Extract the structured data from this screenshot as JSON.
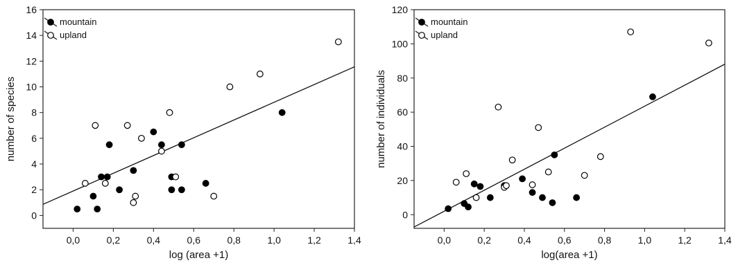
{
  "chart_data": [
    {
      "type": "scatter",
      "xlabel": "log (area +1)",
      "ylabel": "number of species",
      "xlim": [
        -0.15,
        1.4
      ],
      "ylim": [
        -1,
        16
      ],
      "xticks": [
        "0,0",
        "0,2",
        "0,4",
        "0,6",
        "0,8",
        "1,0",
        "1,2",
        "1,4"
      ],
      "yticks": [
        "0",
        "2",
        "4",
        "6",
        "8",
        "10",
        "12",
        "14",
        "16"
      ],
      "legend": {
        "position": "top-left",
        "entries": [
          "mountain",
          "upland"
        ]
      },
      "series": [
        {
          "name": "mountain",
          "marker": "filled-circle",
          "points": [
            [
              0.02,
              0.5
            ],
            [
              0.1,
              1.5
            ],
            [
              0.12,
              0.5
            ],
            [
              0.14,
              3.0
            ],
            [
              0.17,
              3.0
            ],
            [
              0.18,
              5.5
            ],
            [
              0.23,
              2.0
            ],
            [
              0.3,
              3.5
            ],
            [
              0.4,
              6.5
            ],
            [
              0.44,
              5.5
            ],
            [
              0.49,
              3.0
            ],
            [
              0.49,
              2.0
            ],
            [
              0.54,
              5.5
            ],
            [
              0.54,
              2.0
            ],
            [
              0.66,
              2.5
            ],
            [
              1.04,
              8.0
            ]
          ]
        },
        {
          "name": "upland",
          "marker": "open-circle",
          "points": [
            [
              0.06,
              2.5
            ],
            [
              0.11,
              7.0
            ],
            [
              0.16,
              2.5
            ],
            [
              0.27,
              7.0
            ],
            [
              0.3,
              1.0
            ],
            [
              0.31,
              1.5
            ],
            [
              0.34,
              6.0
            ],
            [
              0.44,
              5.0
            ],
            [
              0.48,
              8.0
            ],
            [
              0.51,
              3.0
            ],
            [
              0.7,
              1.5
            ],
            [
              0.78,
              10.0
            ],
            [
              0.93,
              11.0
            ],
            [
              1.32,
              13.5
            ]
          ]
        }
      ],
      "regression_line": {
        "intercept": 1.9,
        "slope": 6.9
      }
    },
    {
      "type": "scatter",
      "xlabel": "log(area +1)",
      "ylabel": "number of individuals",
      "xlim": [
        -0.15,
        1.4
      ],
      "ylim": [
        -8,
        120
      ],
      "xticks": [
        "0,0",
        "0,2",
        "0,4",
        "0,6",
        "0,8",
        "1,0",
        "1,2",
        "1,4"
      ],
      "yticks": [
        "0",
        "20",
        "40",
        "60",
        "80",
        "100",
        "120"
      ],
      "legend": {
        "position": "top-left",
        "entries": [
          "mountain",
          "upland"
        ]
      },
      "series": [
        {
          "name": "mountain",
          "marker": "filled-circle",
          "points": [
            [
              0.02,
              3.5
            ],
            [
              0.1,
              6.5
            ],
            [
              0.12,
              4.5
            ],
            [
              0.15,
              18.0
            ],
            [
              0.18,
              16.5
            ],
            [
              0.23,
              10.0
            ],
            [
              0.3,
              17.0
            ],
            [
              0.39,
              21.0
            ],
            [
              0.44,
              13.0
            ],
            [
              0.49,
              10.0
            ],
            [
              0.54,
              7.0
            ],
            [
              0.55,
              35.0
            ],
            [
              0.66,
              10.0
            ],
            [
              1.04,
              69.0
            ]
          ]
        },
        {
          "name": "upland",
          "marker": "open-circle",
          "points": [
            [
              0.06,
              19.0
            ],
            [
              0.11,
              24.0
            ],
            [
              0.16,
              10.0
            ],
            [
              0.27,
              63.0
            ],
            [
              0.3,
              16.0
            ],
            [
              0.31,
              17.0
            ],
            [
              0.34,
              32.0
            ],
            [
              0.44,
              17.5
            ],
            [
              0.47,
              51.0
            ],
            [
              0.52,
              25.0
            ],
            [
              0.7,
              23.0
            ],
            [
              0.78,
              34.0
            ],
            [
              0.93,
              107.0
            ],
            [
              1.32,
              100.5
            ]
          ]
        }
      ],
      "regression_line": {
        "intercept": 2.0,
        "slope": 61.5
      }
    }
  ]
}
